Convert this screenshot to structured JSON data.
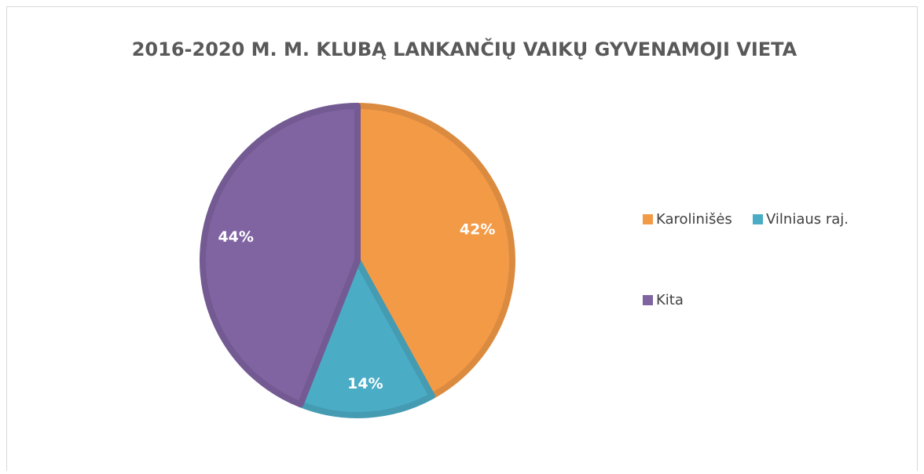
{
  "chart_data": {
    "type": "pie",
    "title": "2016-2020 M. M. KLUBĄ LANKANČIŲ VAIKŲ GYVENAMOJI VIETA",
    "categories": [
      "Karolinišės",
      "Vilniaus raj.",
      "Kita"
    ],
    "values": [
      42,
      14,
      44
    ],
    "value_labels": [
      "42%",
      "14%",
      "44%"
    ],
    "colors": [
      "#f39a47",
      "#4bacc6",
      "#8064a2"
    ],
    "legend": "right"
  }
}
